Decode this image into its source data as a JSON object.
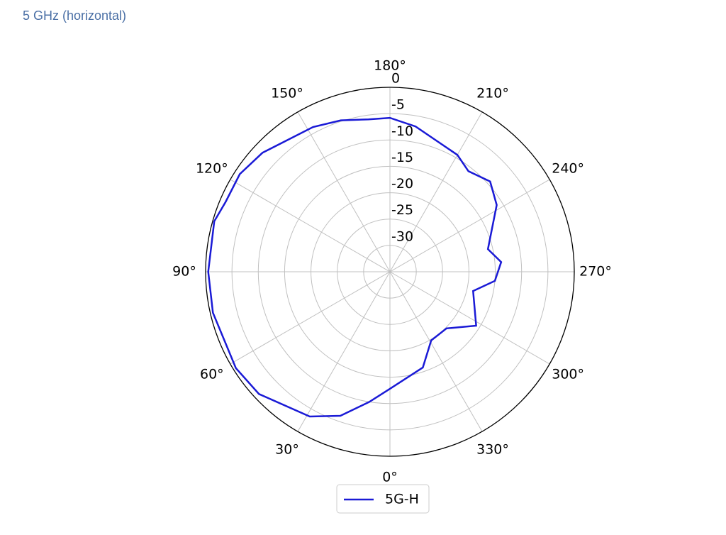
{
  "title": "5 GHz (horizontal)",
  "chart_data": {
    "type": "polar",
    "theta_direction": "clockwise",
    "theta_zero": "south",
    "theta": [
      0,
      9,
      19,
      29,
      47,
      58,
      77,
      90,
      106,
      113,
      123,
      133,
      152,
      162,
      172,
      180,
      190,
      210,
      218,
      228,
      238,
      257,
      265,
      275,
      283,
      302,
      315,
      329,
      341
    ],
    "series": [
      {
        "name": "5G-H",
        "color": "#1a1ad6",
        "values": [
          -12.8,
          -10,
          -6.1,
          -3.6,
          -1,
          -0.5,
          -0.5,
          -0.5,
          -0.3,
          -1.1,
          -1,
          -1.9,
          -3.9,
          -4.8,
          -5.8,
          -5.8,
          -7,
          -9.4,
          -10.8,
          -9.4,
          -11.1,
          -15.9,
          -13.8,
          -15,
          -18.8,
          -15.7,
          -19.8,
          -19.8,
          -15.8
        ]
      }
    ],
    "rlim": [
      -35,
      0
    ],
    "rticks": [
      0,
      -5,
      -10,
      -15,
      -20,
      -25,
      -30
    ],
    "thetaticks": [
      {
        "value": 0,
        "label": "0°"
      },
      {
        "value": 30,
        "label": "30°"
      },
      {
        "value": 60,
        "label": "60°"
      },
      {
        "value": 90,
        "label": "90°"
      },
      {
        "value": 120,
        "label": "120°"
      },
      {
        "value": 150,
        "label": "150°"
      },
      {
        "value": 180,
        "label": "180°"
      },
      {
        "value": 210,
        "label": "210°"
      },
      {
        "value": 240,
        "label": "240°"
      },
      {
        "value": 270,
        "label": "270°"
      },
      {
        "value": 300,
        "label": "300°"
      },
      {
        "value": 330,
        "label": "330°"
      }
    ],
    "grid": true,
    "legend": "bottom"
  }
}
